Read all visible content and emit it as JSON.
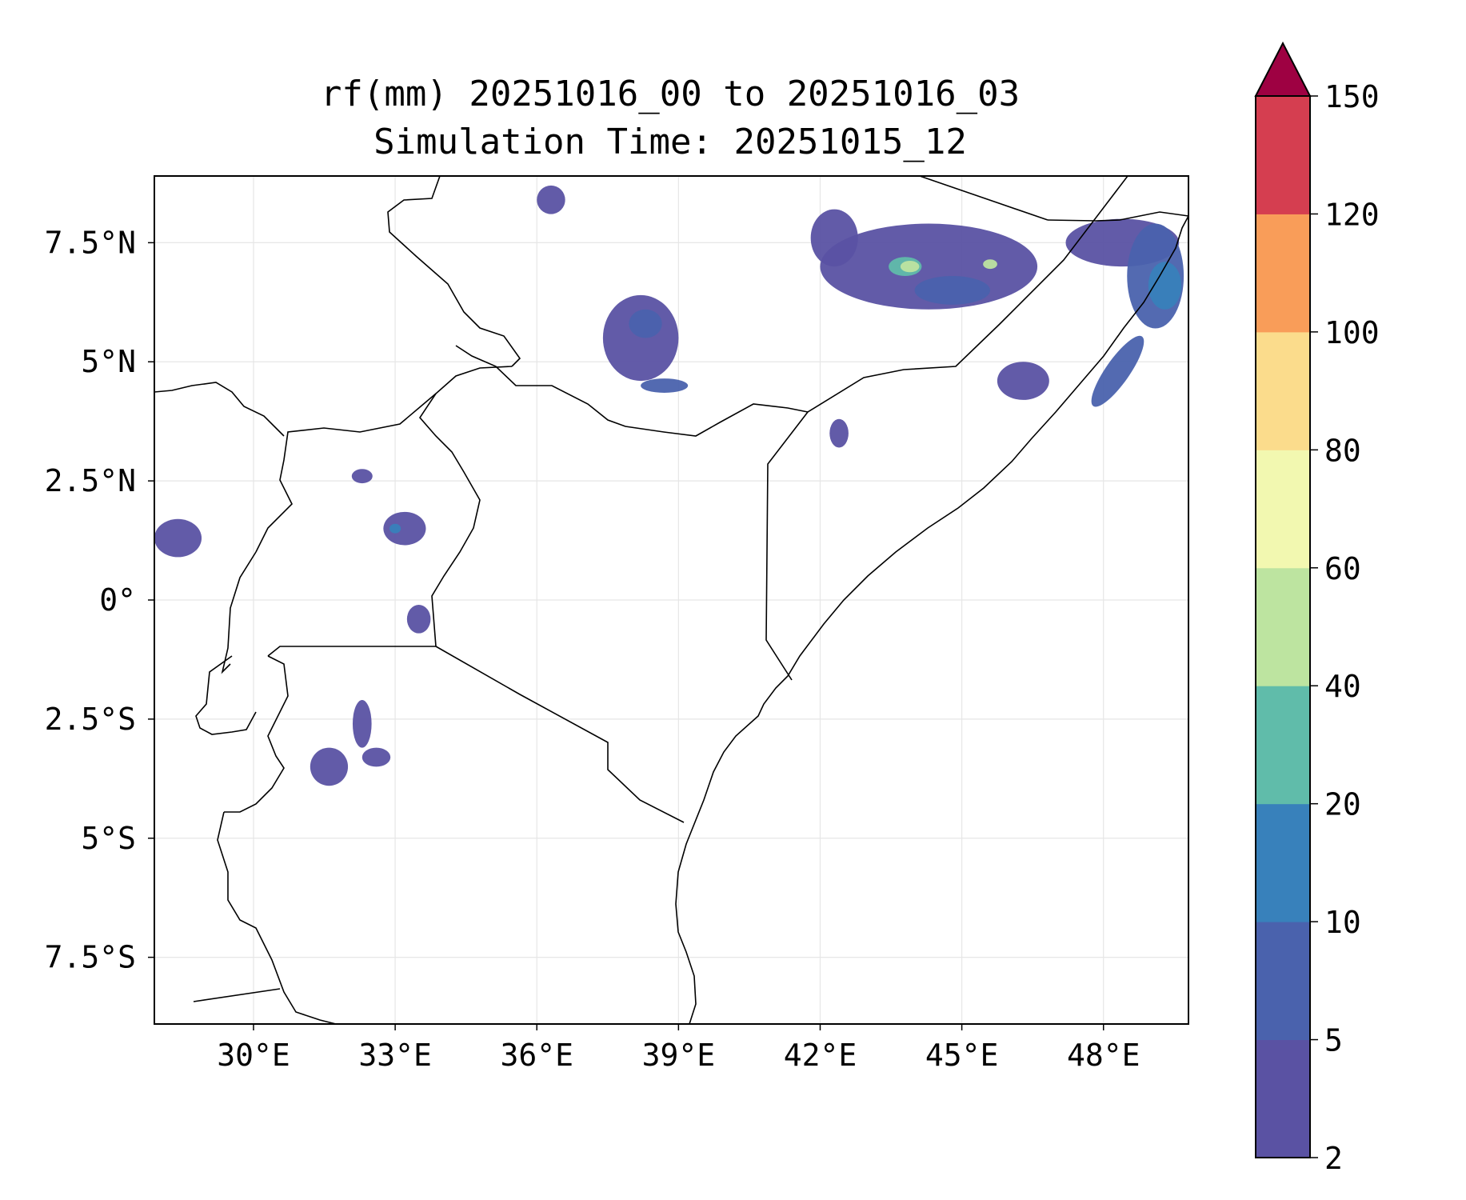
{
  "title": {
    "line1": "rf(mm) 20251016_00 to 20251016_03",
    "line2": "Simulation Time: 20251015_12"
  },
  "map": {
    "lon_range": [
      27.9,
      49.8
    ],
    "lat_range": [
      -8.9,
      8.9
    ],
    "lon_ticks": [
      {
        "value": 30,
        "label": "30°E"
      },
      {
        "value": 33,
        "label": "33°E"
      },
      {
        "value": 36,
        "label": "36°E"
      },
      {
        "value": 39,
        "label": "39°E"
      },
      {
        "value": 42,
        "label": "42°E"
      },
      {
        "value": 45,
        "label": "45°E"
      },
      {
        "value": 48,
        "label": "48°E"
      }
    ],
    "lat_ticks": [
      {
        "value": 7.5,
        "label": "7.5°N"
      },
      {
        "value": 5,
        "label": "5°N"
      },
      {
        "value": 2.5,
        "label": "2.5°N"
      },
      {
        "value": 0,
        "label": "0°"
      },
      {
        "value": -2.5,
        "label": "2.5°S"
      },
      {
        "value": -5,
        "label": "5°S"
      },
      {
        "value": -7.5,
        "label": "7.5°S"
      }
    ]
  },
  "colorbar": {
    "levels": [
      {
        "label": "2",
        "color": "#5a52a3"
      },
      {
        "label": "5",
        "color": "#4a62ad"
      },
      {
        "label": "10",
        "color": "#3881bb"
      },
      {
        "label": "20",
        "color": "#60bcaa"
      },
      {
        "label": "40",
        "color": "#bde4a0"
      },
      {
        "label": "60",
        "color": "#f2f8b0"
      },
      {
        "label": "80",
        "color": "#fbdc8c"
      },
      {
        "label": "100",
        "color": "#f99d59"
      },
      {
        "label": "120",
        "color": "#d53e50"
      },
      {
        "label": "150",
        "color": ""
      }
    ],
    "extend_color": "#9e0142"
  },
  "chart_data": {
    "type": "heatmap",
    "title": "rf(mm) 20251016_00 to 20251016_03\nSimulation Time: 20251015_12",
    "variable": "rf(mm)",
    "xlabel": "",
    "ylabel": "",
    "xlim": [
      27.9,
      49.8
    ],
    "ylim": [
      -8.9,
      8.9
    ],
    "levels": [
      2,
      5,
      10,
      20,
      40,
      60,
      80,
      100,
      120,
      150
    ],
    "extend": "max",
    "cmap_colors": [
      "#5a52a3",
      "#4a62ad",
      "#3881bb",
      "#60bcaa",
      "#bde4a0",
      "#f2f8b0",
      "#fbdc8c",
      "#f99d59",
      "#d53e50",
      "#9e0142"
    ],
    "grid": true,
    "rain_cells": [
      {
        "lon": 44.3,
        "lat": 7.0,
        "rx": 2.3,
        "ry": 0.9,
        "level": 0
      },
      {
        "lon": 42.3,
        "lat": 7.6,
        "rx": 0.5,
        "ry": 0.6,
        "level": 0
      },
      {
        "lon": 48.4,
        "lat": 7.5,
        "rx": 1.2,
        "ry": 0.5,
        "level": 0
      },
      {
        "lon": 49.1,
        "lat": 6.8,
        "rx": 0.6,
        "ry": 1.1,
        "level": 1
      },
      {
        "lon": 49.3,
        "lat": 6.6,
        "rx": 0.35,
        "ry": 0.5,
        "level": 2
      },
      {
        "lon": 48.3,
        "lat": 4.8,
        "rx": 0.9,
        "ry": 0.25,
        "level": 1,
        "rotate": -55
      },
      {
        "lon": 44.8,
        "lat": 6.5,
        "rx": 0.8,
        "ry": 0.3,
        "level": 1
      },
      {
        "lon": 43.8,
        "lat": 7.0,
        "rx": 0.35,
        "ry": 0.2,
        "level": 3
      },
      {
        "lon": 43.9,
        "lat": 7.0,
        "rx": 0.2,
        "ry": 0.12,
        "level": 4
      },
      {
        "lon": 45.6,
        "lat": 7.05,
        "rx": 0.15,
        "ry": 0.1,
        "level": 4
      },
      {
        "lon": 38.2,
        "lat": 5.5,
        "rx": 0.8,
        "ry": 0.9,
        "level": 0
      },
      {
        "lon": 38.3,
        "lat": 5.8,
        "rx": 0.35,
        "ry": 0.3,
        "level": 1
      },
      {
        "lon": 38.7,
        "lat": 4.5,
        "rx": 0.5,
        "ry": 0.15,
        "level": 1
      },
      {
        "lon": 46.3,
        "lat": 4.6,
        "rx": 0.55,
        "ry": 0.4,
        "level": 0
      },
      {
        "lon": 36.3,
        "lat": 8.4,
        "rx": 0.3,
        "ry": 0.3,
        "level": 0
      },
      {
        "lon": 33.2,
        "lat": 1.5,
        "rx": 0.45,
        "ry": 0.35,
        "level": 0
      },
      {
        "lon": 33.0,
        "lat": 1.5,
        "rx": 0.12,
        "ry": 0.1,
        "level": 2
      },
      {
        "lon": 28.4,
        "lat": 1.3,
        "rx": 0.5,
        "ry": 0.4,
        "level": 0
      },
      {
        "lon": 32.3,
        "lat": -2.6,
        "rx": 0.2,
        "ry": 0.5,
        "level": 0
      },
      {
        "lon": 31.6,
        "lat": -3.5,
        "rx": 0.4,
        "ry": 0.4,
        "level": 0
      },
      {
        "lon": 32.6,
        "lat": -3.3,
        "rx": 0.3,
        "ry": 0.2,
        "level": 0
      },
      {
        "lon": 33.5,
        "lat": -0.4,
        "rx": 0.25,
        "ry": 0.3,
        "level": 0
      },
      {
        "lon": 32.3,
        "lat": 2.6,
        "rx": 0.22,
        "ry": 0.15,
        "level": 0
      },
      {
        "lon": 42.4,
        "lat": 3.5,
        "rx": 0.2,
        "ry": 0.3,
        "level": 0
      }
    ]
  }
}
